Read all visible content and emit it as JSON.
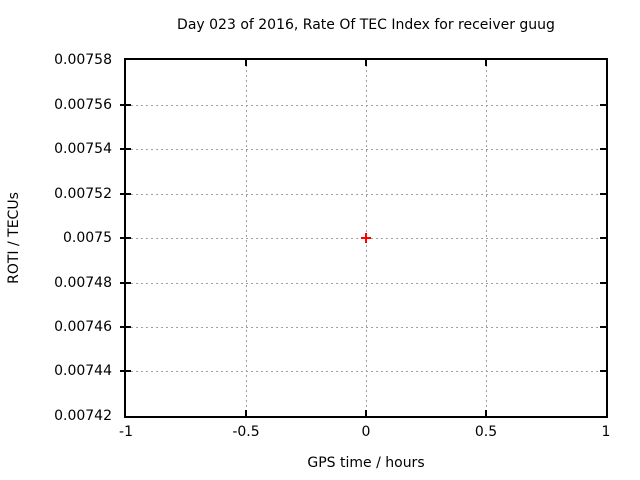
{
  "colors": {
    "background": "#ffffff",
    "axis": "#000000",
    "text": "#000000",
    "grid": "#a0a0a0",
    "marker": "#ff0000"
  },
  "chart_data": {
    "type": "scatter",
    "title": "Day 023 of 2016, Rate Of TEC Index for receiver guug",
    "xlabel": "GPS time / hours",
    "ylabel": "ROTI / TECUs",
    "xlim": [
      -1,
      1
    ],
    "ylim": [
      0.00742,
      0.00758
    ],
    "grid": true,
    "legend": "none",
    "x_ticks": [
      {
        "value": -1,
        "label": "-1"
      },
      {
        "value": -0.5,
        "label": "-0.5"
      },
      {
        "value": 0,
        "label": "0"
      },
      {
        "value": 0.5,
        "label": "0.5"
      },
      {
        "value": 1,
        "label": "1"
      }
    ],
    "y_ticks": [
      {
        "value": 0.00742,
        "label": "0.00742"
      },
      {
        "value": 0.00744,
        "label": "0.00744"
      },
      {
        "value": 0.00746,
        "label": "0.00746"
      },
      {
        "value": 0.00748,
        "label": "0.00748"
      },
      {
        "value": 0.0075,
        "label": "0.0075"
      },
      {
        "value": 0.00752,
        "label": "0.00752"
      },
      {
        "value": 0.00754,
        "label": "0.00754"
      },
      {
        "value": 0.00756,
        "label": "0.00756"
      },
      {
        "value": 0.00758,
        "label": "0.00758"
      }
    ],
    "series": [
      {
        "marker": "plus",
        "color": "#ff0000",
        "points": [
          {
            "x": 0,
            "y": 0.0075
          }
        ]
      }
    ]
  }
}
